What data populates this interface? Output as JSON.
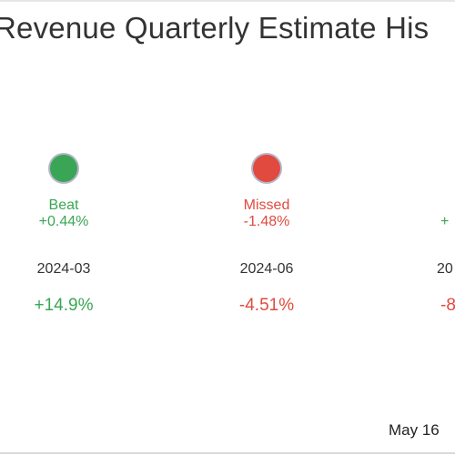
{
  "chart_data": {
    "type": "table",
    "title": "Revenue Quarterly Estimate His",
    "colors": {
      "beat": "#3aa655",
      "missed": "#e04a3f",
      "text": "#333333"
    },
    "columns": [
      {
        "period": "2024-03",
        "result": "Beat",
        "surprise": "+0.44%",
        "growth": "+14.9%",
        "marker_color": "#3aa655",
        "text_color": "#3aa655"
      },
      {
        "period": "2024-06",
        "result": "Missed",
        "surprise": "-1.48%",
        "growth": "-4.51%",
        "marker_color": "#e04a3f",
        "text_color": "#e04a3f"
      },
      {
        "period": "20",
        "result": "",
        "surprise": "+",
        "growth": "-8",
        "marker_color": "",
        "text_color": "#3aa655",
        "growth_color": "#e04a3f"
      }
    ],
    "footer_date": "May 16"
  }
}
